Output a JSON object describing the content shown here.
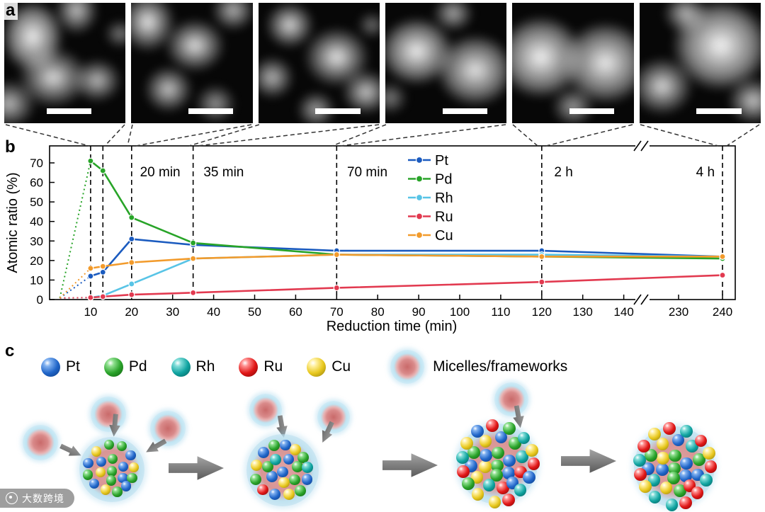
{
  "figure": {
    "panel_labels": {
      "a": "a",
      "b": "b",
      "c": "c"
    }
  },
  "chart_data": {
    "type": "line",
    "title": "",
    "xlabel": "Reduction time (min)",
    "ylabel": "Atomic ratio (%)",
    "x": [
      10,
      13,
      20,
      35,
      70,
      120,
      240
    ],
    "series": [
      {
        "name": "Pt",
        "color": "#1b5bbf",
        "values": [
          12,
          14,
          31,
          28,
          25,
          25,
          22
        ]
      },
      {
        "name": "Pd",
        "color": "#28a428",
        "values": [
          71,
          66,
          42,
          29,
          23,
          22,
          21
        ]
      },
      {
        "name": "Rh",
        "color": "#58c4e6",
        "values": [
          1,
          2,
          8,
          21,
          23,
          23,
          22
        ]
      },
      {
        "name": "Ru",
        "color": "#e23a50",
        "values": [
          1,
          1.5,
          2.5,
          3.5,
          6,
          9,
          12.5
        ]
      },
      {
        "name": "Cu",
        "color": "#f29b2c",
        "values": [
          16,
          17,
          19,
          21,
          23,
          22,
          22
        ]
      }
    ],
    "x_ticks": [
      10,
      20,
      30,
      40,
      50,
      60,
      70,
      80,
      90,
      100,
      110,
      120,
      130,
      140,
      230,
      240
    ],
    "y_ticks": [
      0,
      10,
      20,
      30,
      40,
      50,
      60,
      70
    ],
    "ylim": [
      0,
      78
    ],
    "grid": false,
    "legend_position": "inside-top-center",
    "axis_break": {
      "after": 140,
      "before": 230
    },
    "dashed_lines_x": [
      10,
      13,
      20,
      35,
      70,
      120,
      240
    ],
    "stage_labels": [
      {
        "text": "20 min",
        "x": 21
      },
      {
        "text": "35 min",
        "x": 36.5
      },
      {
        "text": "70 min",
        "x": 71.5
      },
      {
        "text": "2 h",
        "x": 122
      },
      {
        "text": "4 h",
        "x": 233
      }
    ]
  },
  "schematic": {
    "legend": [
      {
        "label": "Pt",
        "color_key": "blue"
      },
      {
        "label": "Pd",
        "color_key": "green"
      },
      {
        "label": "Rh",
        "color_key": "teal"
      },
      {
        "label": "Ru",
        "color_key": "red"
      },
      {
        "label": "Cu",
        "color_key": "yellow"
      }
    ],
    "micelle_label": "Micelles/frameworks",
    "sphere_colors": {
      "blue": {
        "main": "#2065c8",
        "light": "#7fb0f0",
        "dark": "#0c3a80"
      },
      "green": {
        "main": "#2aa32a",
        "light": "#8fe08f",
        "dark": "#0f5c0f"
      },
      "teal": {
        "main": "#0fa3a0",
        "light": "#7fdcd8",
        "dark": "#065c5a"
      },
      "red": {
        "main": "#e01616",
        "light": "#ff8f8f",
        "dark": "#7c0808"
      },
      "yellow": {
        "main": "#e8c81e",
        "light": "#fff0a0",
        "dark": "#8f7a0a"
      }
    },
    "stages": [
      {
        "spheres": [
          "green",
          "blue",
          "green",
          "yellow",
          "blue",
          "green",
          "blue",
          "green",
          "yellow",
          "blue",
          "green",
          "blue",
          "yellow",
          "green",
          "green",
          "blue",
          "yellow",
          "green",
          "blue"
        ]
      },
      {
        "spheres": [
          "blue",
          "green",
          "yellow",
          "blue",
          "green",
          "teal",
          "blue",
          "green",
          "yellow",
          "blue",
          "red",
          "green",
          "yellow",
          "blue",
          "green",
          "blue",
          "yellow",
          "green",
          "teal",
          "blue",
          "green"
        ]
      },
      {
        "spheres": [
          "green",
          "blue",
          "green",
          "yellow",
          "blue",
          "green",
          "blue",
          "red",
          "teal",
          "yellow",
          "blue",
          "green",
          "yellow",
          "blue",
          "green",
          "teal",
          "red",
          "blue",
          "yellow",
          "green",
          "red",
          "teal",
          "yellow",
          "blue",
          "red",
          "green",
          "teal",
          "yellow",
          "red",
          "blue",
          "teal",
          "red",
          "yellow"
        ]
      },
      {
        "spheres": [
          "green",
          "blue",
          "green",
          "blue",
          "yellow",
          "green",
          "blue",
          "green",
          "yellow",
          "teal",
          "blue",
          "green",
          "yellow",
          "blue",
          "teal",
          "green",
          "blue",
          "red",
          "teal",
          "yellow",
          "red",
          "teal",
          "red",
          "yellow",
          "red",
          "teal",
          "red",
          "yellow",
          "red",
          "teal",
          "red",
          "red",
          "teal"
        ]
      }
    ]
  },
  "watermark": {
    "text": "大数跨境"
  }
}
